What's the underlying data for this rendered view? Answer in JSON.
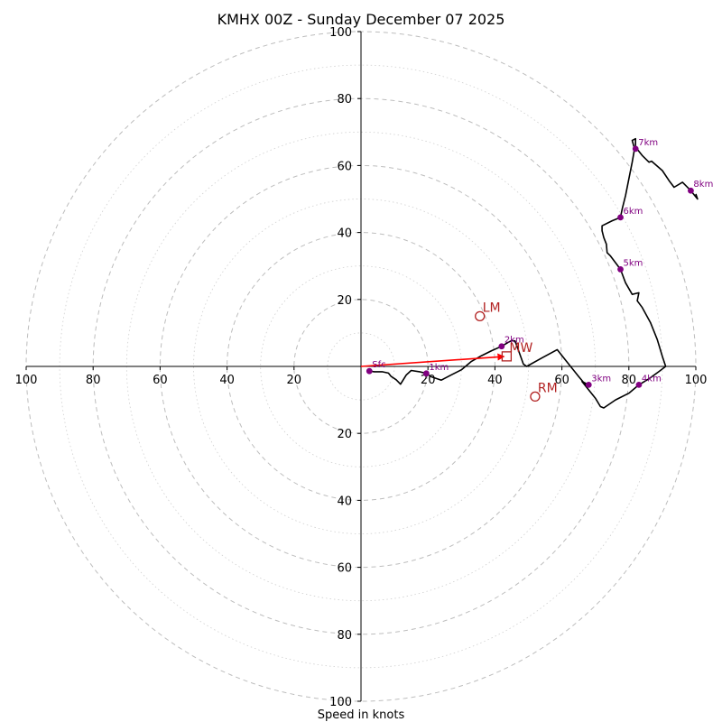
{
  "chart_data": {
    "type": "hodograph",
    "title": "KMHX 00Z - Sunday December 07 2025",
    "xlabel": "Speed in knots",
    "units": "knots",
    "max_speed": 100,
    "ring_step_major": 20,
    "ring_step_minor": 10,
    "tick_values": [
      20,
      40,
      60,
      80,
      100
    ],
    "trace": {
      "name": "hodograph",
      "color": "#000000",
      "points": [
        [
          2.5,
          -1.4
        ],
        [
          4,
          -1.6
        ],
        [
          6.3,
          -1.6
        ],
        [
          8.2,
          -2
        ],
        [
          9,
          -3
        ],
        [
          10.5,
          -4
        ],
        [
          11.8,
          -5.3
        ],
        [
          13.5,
          -2.6
        ],
        [
          15,
          -1.2
        ],
        [
          17.5,
          -1.6
        ],
        [
          19.5,
          -2.1
        ],
        [
          21,
          -3.1
        ],
        [
          24,
          -4.1
        ],
        [
          27,
          -2.5
        ],
        [
          30,
          -1
        ],
        [
          33,
          1.5
        ],
        [
          36,
          3.2
        ],
        [
          39,
          4.7
        ],
        [
          42,
          6
        ],
        [
          44,
          7.2
        ],
        [
          45,
          7.7
        ],
        [
          46,
          7.6
        ],
        [
          47.5,
          3.5
        ],
        [
          48.5,
          0.7
        ],
        [
          49.5,
          0
        ],
        [
          54,
          2.5
        ],
        [
          58.6,
          5
        ],
        [
          61,
          2
        ],
        [
          65,
          -3
        ],
        [
          67.5,
          -6
        ],
        [
          68,
          -5.5
        ],
        [
          66,
          -4.5
        ],
        [
          70,
          -9.5
        ],
        [
          71.5,
          -12
        ],
        [
          72.5,
          -12.4
        ],
        [
          76,
          -10
        ],
        [
          80,
          -8
        ],
        [
          83,
          -5.5
        ],
        [
          86,
          -3.7
        ],
        [
          89,
          -1.5
        ],
        [
          91,
          0
        ],
        [
          90,
          3
        ],
        [
          88.5,
          8
        ],
        [
          86.5,
          13
        ],
        [
          84,
          17.6
        ],
        [
          82.5,
          19.6
        ],
        [
          83,
          22
        ],
        [
          81,
          21.5
        ],
        [
          79,
          25
        ],
        [
          77.5,
          29
        ],
        [
          74.5,
          33
        ],
        [
          73.5,
          34
        ],
        [
          73.3,
          36.5
        ],
        [
          72.5,
          38.5
        ],
        [
          72,
          40.5
        ],
        [
          72,
          42
        ],
        [
          75,
          43.5
        ],
        [
          77.5,
          44.5
        ],
        [
          78,
          47
        ],
        [
          79,
          51
        ],
        [
          80,
          56
        ],
        [
          81,
          61
        ],
        [
          81.7,
          65
        ],
        [
          81,
          67.5
        ],
        [
          82,
          68
        ],
        [
          82,
          65.5
        ],
        [
          84,
          63
        ],
        [
          86,
          61
        ],
        [
          86.8,
          61.3
        ],
        [
          90,
          58.5
        ],
        [
          92,
          55.5
        ],
        [
          93.5,
          53.5
        ],
        [
          96,
          55
        ],
        [
          98.5,
          52.5
        ],
        [
          100.5,
          50
        ],
        [
          100,
          51.5
        ]
      ]
    },
    "height_markers": [
      {
        "label": "Sfc",
        "u": 2.5,
        "v": -1.4
      },
      {
        "label": "1km",
        "u": 19.5,
        "v": -2.1
      },
      {
        "label": "2km",
        "u": 42,
        "v": 6
      },
      {
        "label": "3km",
        "u": 68,
        "v": -5.5
      },
      {
        "label": "4km",
        "u": 83,
        "v": -5.5
      },
      {
        "label": "5km",
        "u": 77.5,
        "v": 29
      },
      {
        "label": "6km",
        "u": 77.5,
        "v": 44.5
      },
      {
        "label": "7km",
        "u": 82,
        "v": 65
      },
      {
        "label": "8km",
        "u": 98.5,
        "v": 52.5
      }
    ],
    "storm_motion": [
      {
        "label": "LM",
        "u": 35.5,
        "v": 15,
        "marker": "circle"
      },
      {
        "label": "RM",
        "u": 52,
        "v": -9,
        "marker": "circle"
      },
      {
        "label": "MW",
        "u": 43.5,
        "v": 3,
        "marker": "square"
      }
    ],
    "shear_vector": {
      "from": [
        0,
        0
      ],
      "to": [
        43.5,
        3
      ],
      "color": "#ff0000"
    },
    "colors": {
      "height_marker": "#800080",
      "storm_motion": "#b22222",
      "shear_arrow": "#ff0000",
      "rings": "#bdbdbd",
      "trace": "#000000"
    }
  }
}
